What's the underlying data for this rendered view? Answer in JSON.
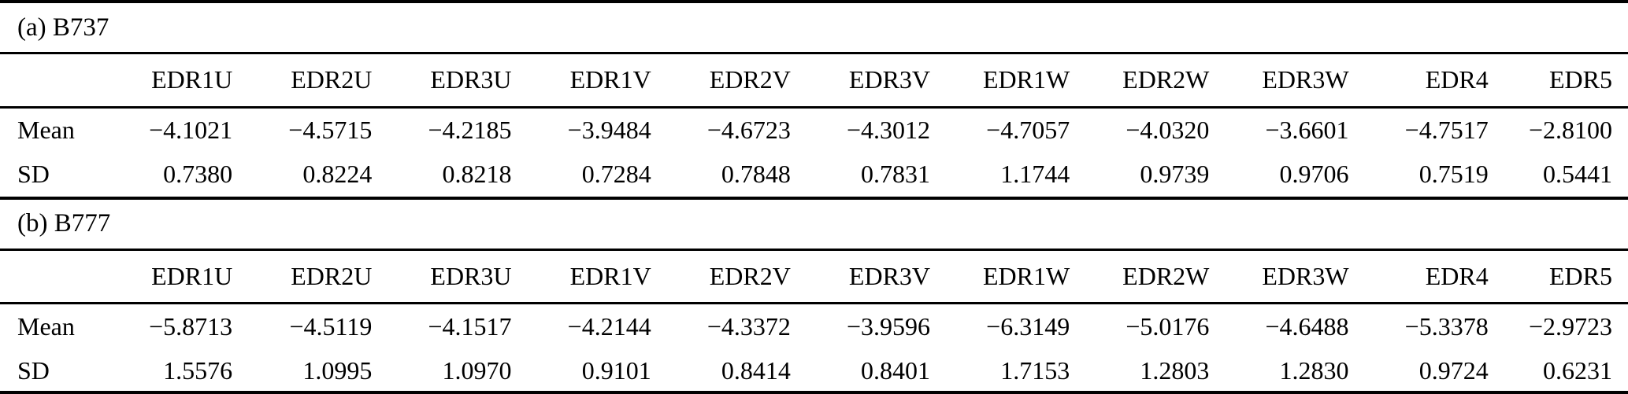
{
  "tables": [
    {
      "caption": "(a) B737",
      "columns": [
        "EDR1U",
        "EDR2U",
        "EDR3U",
        "EDR1V",
        "EDR2V",
        "EDR3V",
        "EDR1W",
        "EDR2W",
        "EDR3W",
        "EDR4",
        "EDR5"
      ],
      "rows": [
        {
          "label": "Mean",
          "values": [
            "−4.1021",
            "−4.5715",
            "−4.2185",
            "−3.9484",
            "−4.6723",
            "−4.3012",
            "−4.7057",
            "−4.0320",
            "−3.6601",
            "−4.7517",
            "−2.8100"
          ]
        },
        {
          "label": "SD",
          "values": [
            "0.7380",
            "0.8224",
            "0.8218",
            "0.7284",
            "0.7848",
            "0.7831",
            "1.1744",
            "0.9739",
            "0.9706",
            "0.7519",
            "0.5441"
          ]
        }
      ]
    },
    {
      "caption": "(b) B777",
      "columns": [
        "EDR1U",
        "EDR2U",
        "EDR3U",
        "EDR1V",
        "EDR2V",
        "EDR3V",
        "EDR1W",
        "EDR2W",
        "EDR3W",
        "EDR4",
        "EDR5"
      ],
      "rows": [
        {
          "label": "Mean",
          "values": [
            "−5.8713",
            "−4.5119",
            "−4.1517",
            "−4.2144",
            "−4.3372",
            "−3.9596",
            "−6.3149",
            "−5.0176",
            "−4.6488",
            "−5.3378",
            "−2.9723"
          ]
        },
        {
          "label": "SD",
          "values": [
            "1.5576",
            "1.0995",
            "1.0970",
            "0.9101",
            "0.8414",
            "0.8401",
            "1.7153",
            "1.2803",
            "1.2830",
            "0.9724",
            "0.6231"
          ]
        }
      ]
    }
  ],
  "colors": {
    "text": "#000000",
    "background": "#ffffff",
    "rule": "#000000"
  }
}
